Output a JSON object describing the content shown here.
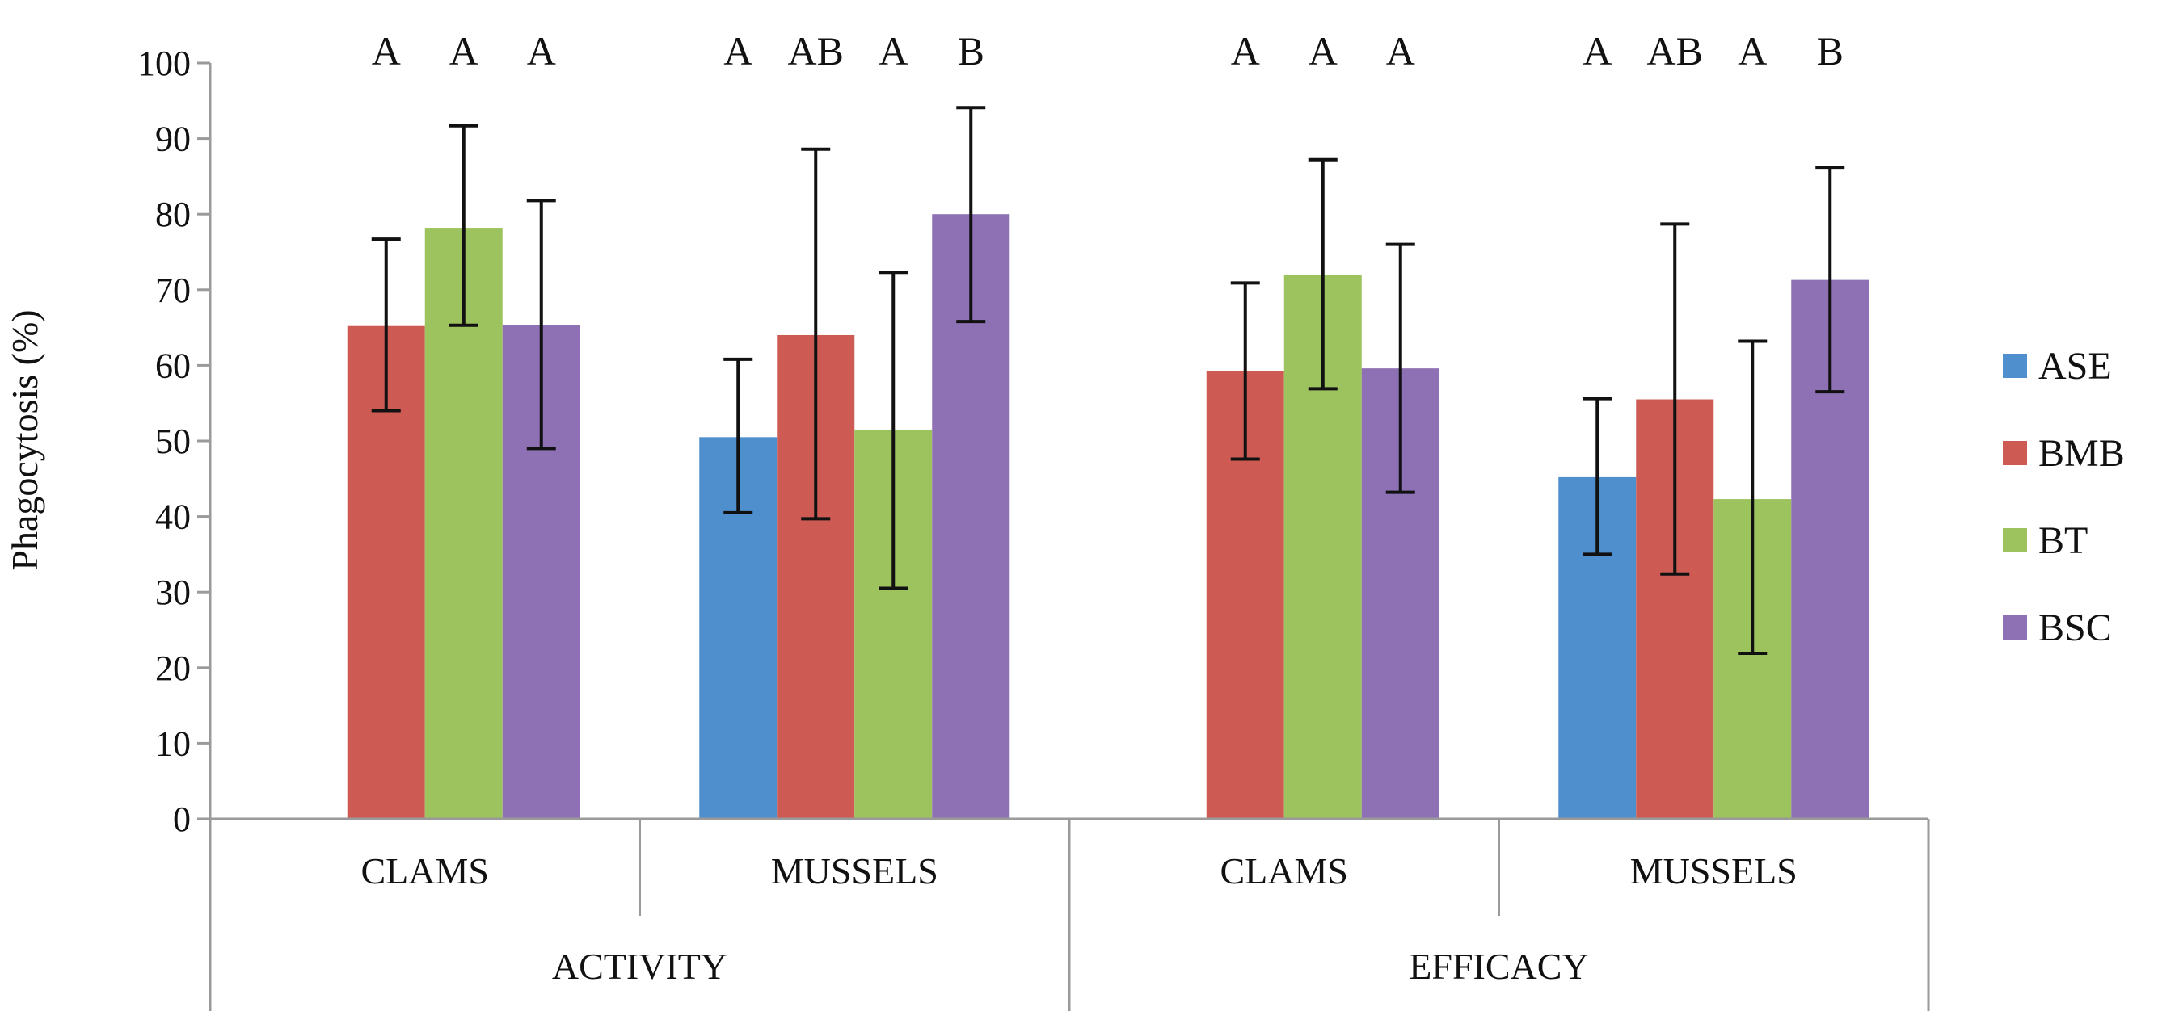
{
  "chart_data": {
    "type": "bar",
    "ylabel": "Phagocytosis (%)",
    "ylim": [
      0,
      100
    ],
    "yticks": [
      0,
      10,
      20,
      30,
      40,
      50,
      60,
      70,
      80,
      90,
      100
    ],
    "series": [
      {
        "name": "ASE",
        "color": "#4f8fcd"
      },
      {
        "name": "BMB",
        "color": "#cd5b54"
      },
      {
        "name": "BT",
        "color": "#9dc35f"
      },
      {
        "name": "BSC",
        "color": "#8d71b4"
      }
    ],
    "outer_groups": [
      "ACTIVITY",
      "EFFICACY"
    ],
    "groups": [
      {
        "outer": "ACTIVITY",
        "label": "CLAMS",
        "values": [
          null,
          65.2,
          78.2,
          65.3
        ],
        "err_low": [
          null,
          54,
          65.3,
          49
        ],
        "err_high": [
          null,
          76.7,
          91.7,
          81.8
        ],
        "letters": [
          null,
          "A",
          "A",
          "A"
        ]
      },
      {
        "outer": "ACTIVITY",
        "label": "MUSSELS",
        "values": [
          50.5,
          64,
          51.5,
          80
        ],
        "err_low": [
          40.5,
          39.7,
          30.5,
          65.8
        ],
        "err_high": [
          60.8,
          88.6,
          72.3,
          94.1
        ],
        "letters": [
          "A",
          "AB",
          "A",
          "B"
        ]
      },
      {
        "outer": "EFFICACY",
        "label": "CLAMS",
        "values": [
          null,
          59.2,
          72,
          59.6
        ],
        "err_low": [
          null,
          47.6,
          56.9,
          43.2
        ],
        "err_high": [
          null,
          70.9,
          87.2,
          76
        ],
        "letters": [
          null,
          "A",
          "A",
          "A"
        ]
      },
      {
        "outer": "EFFICACY",
        "label": "MUSSELS",
        "values": [
          45.2,
          55.5,
          42.3,
          71.3
        ],
        "err_low": [
          35,
          32.4,
          21.9,
          56.5
        ],
        "err_high": [
          55.6,
          78.7,
          63.2,
          86.2
        ],
        "letters": [
          "A",
          "AB",
          "A",
          "B"
        ]
      }
    ]
  }
}
